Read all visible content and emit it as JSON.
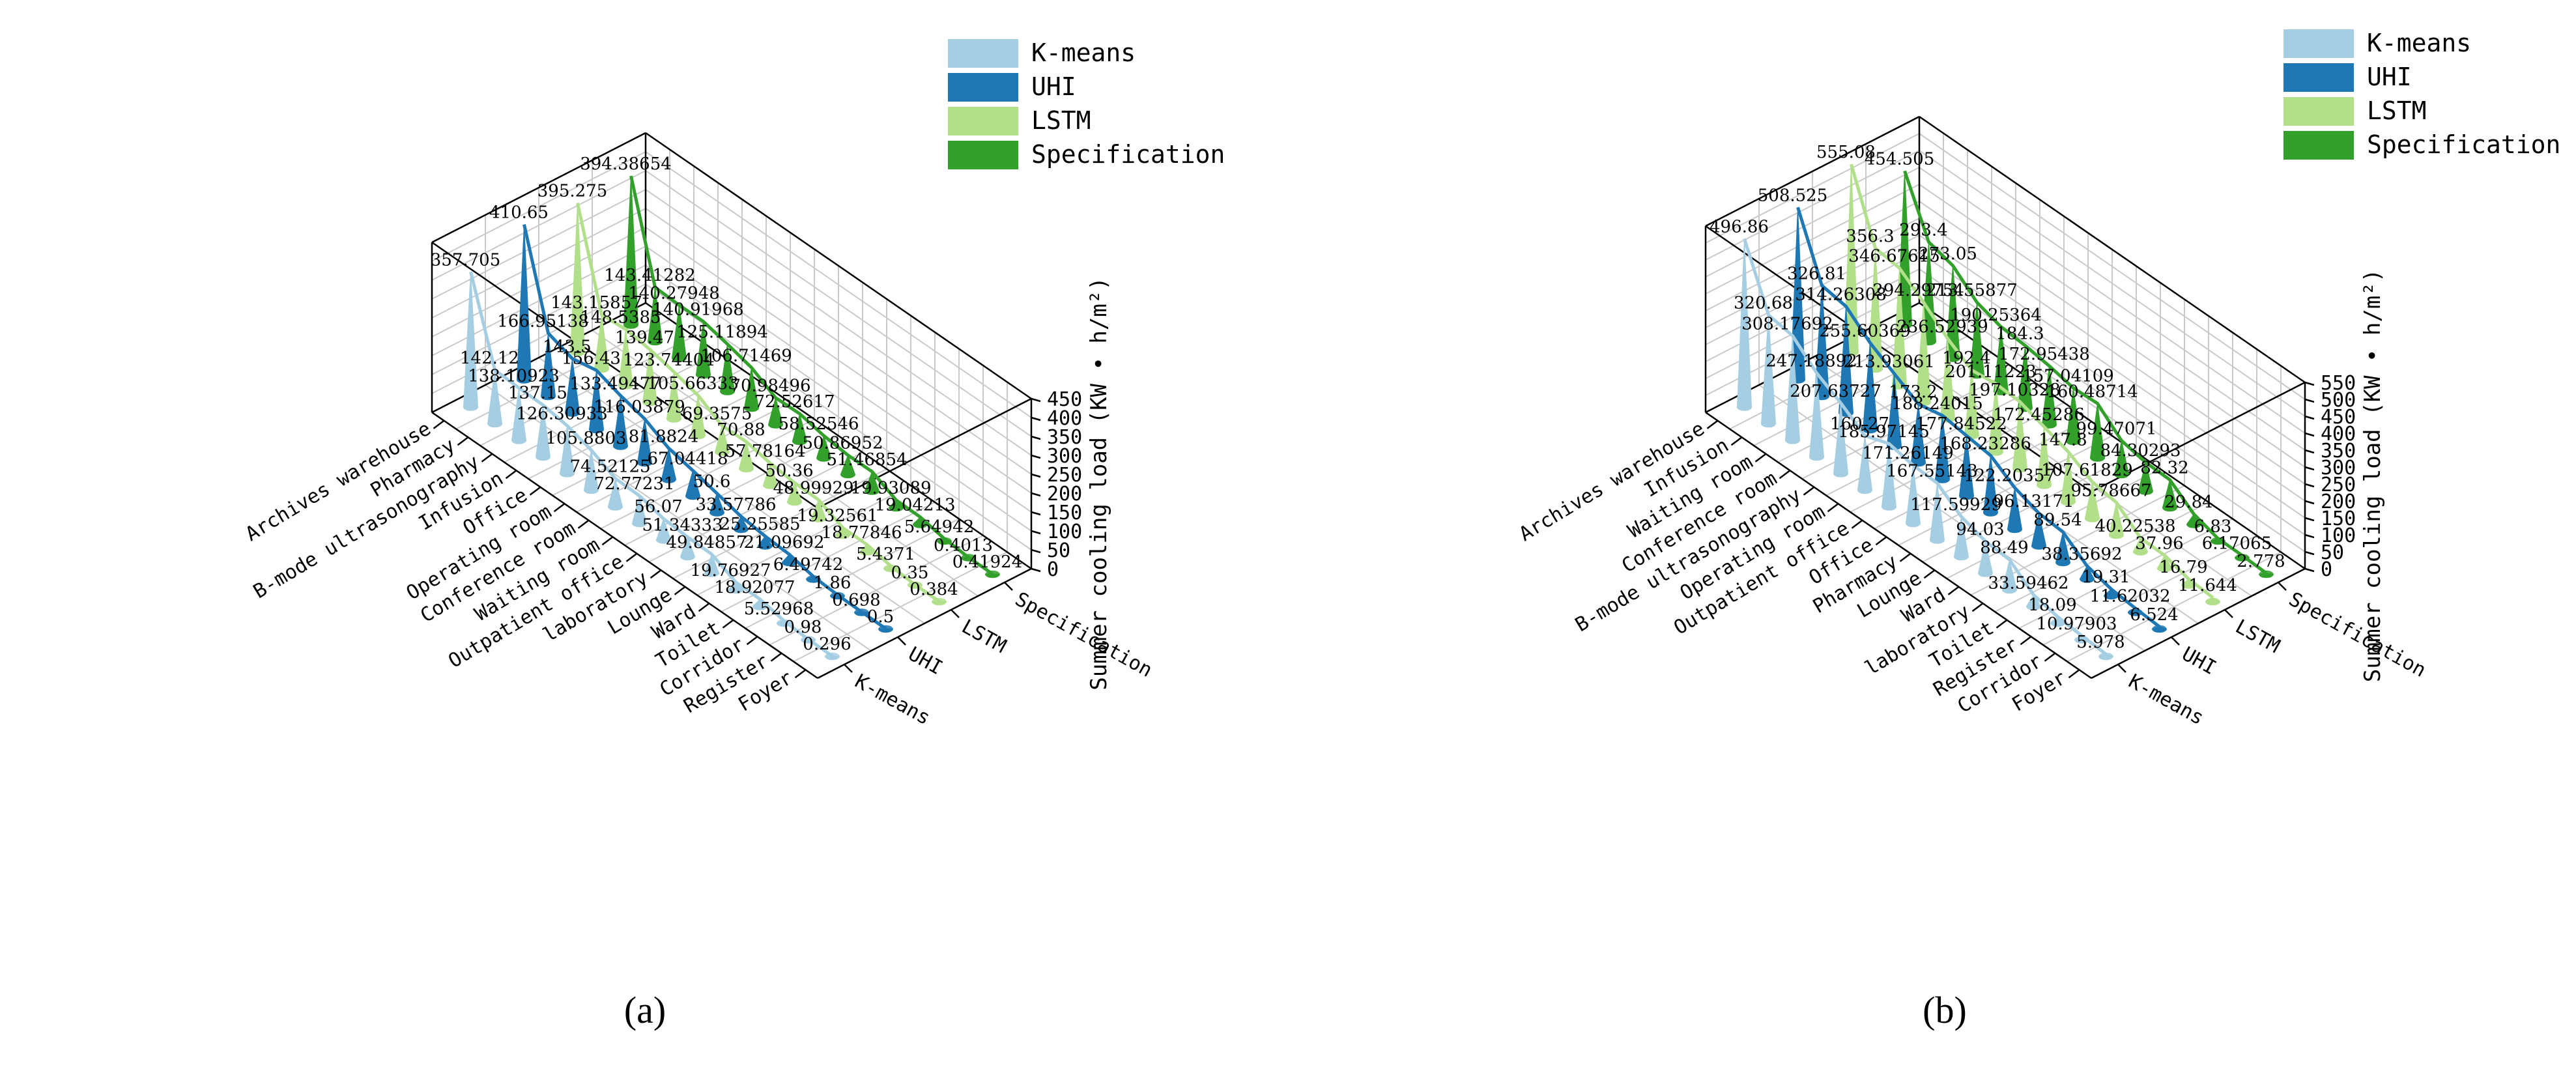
{
  "colors": {
    "K-means": "#a6cee3",
    "UHI": "#1f78b4",
    "LSTM": "#b2df8a",
    "Specification": "#33a02c"
  },
  "chart_data": [
    {
      "type": "bar",
      "panel_label": "(a)",
      "title": "",
      "xlabel": "",
      "zlabel": "Summer cooling load (KW • h/m²)",
      "zlim": [
        0,
        450
      ],
      "zticks": [
        0,
        50,
        100,
        150,
        200,
        250,
        300,
        350,
        400,
        450
      ],
      "grid": true,
      "legend_position": "top-right",
      "categories": [
        "Archives warehouse",
        "Pharmacy",
        "B-mode ultrasonography",
        "Infusion",
        "Office",
        "Operating room",
        "Conference room",
        "Waiting room",
        "Outpatient office",
        "laboratory",
        "Lounge",
        "Ward",
        "Toilet",
        "Corridor",
        "Register",
        "Foyer"
      ],
      "series": [
        {
          "name": "K-means",
          "values": [
            357.705,
            142.12,
            138.10923,
            137.15,
            126.30933,
            105.8803,
            74.52125,
            72.77231,
            56.07,
            51.34333,
            49.84857,
            19.76927,
            18.92077,
            5.52968,
            0.98,
            0.296
          ]
        },
        {
          "name": "UHI",
          "values": [
            410.65,
            166.95138,
            143.5,
            156.43,
            133.49477,
            116.03879,
            81.8824,
            67.04418,
            50.6,
            33.57786,
            25.25585,
            21.09692,
            6.49742,
            1.86,
            0.698,
            0.5
          ]
        },
        {
          "name": "LSTM",
          "values": [
            395.275,
            143.15857,
            148.5385,
            139.47,
            123.74404,
            105.66333,
            69.3575,
            70.88,
            57.78164,
            50.36,
            48.99929,
            19.32561,
            18.77846,
            5.4371,
            0.35,
            0.384
          ]
        },
        {
          "name": "Specification",
          "values": [
            394.38654,
            143.41282,
            140.27948,
            140.91968,
            125.11894,
            106.71469,
            70.98496,
            72.52617,
            58.52546,
            50.86952,
            51.46854,
            19.93089,
            19.04213,
            5.64942,
            0.4013,
            0.41924
          ]
        }
      ]
    },
    {
      "type": "bar",
      "panel_label": "(b)",
      "title": "",
      "xlabel": "",
      "zlabel": "Summer cooling load (KW • h/m²)",
      "zlim": [
        0,
        550
      ],
      "zticks": [
        0,
        50,
        100,
        150,
        200,
        250,
        300,
        350,
        400,
        450,
        500,
        550
      ],
      "grid": true,
      "legend_position": "top-right",
      "categories": [
        "Archives warehouse",
        "Infusion",
        "Waiting room",
        "Conference room",
        "B-mode ultrasonography",
        "Operating room",
        "Outpatient office",
        "Office",
        "Pharmacy",
        "Lounge",
        "Ward",
        "laboratory",
        "Toilet",
        "Register",
        "Corridor",
        "Foyer"
      ],
      "series": [
        {
          "name": "K-means",
          "values": [
            496.86,
            320.68,
            308.17692,
            247.18892,
            207.63727,
            160.27,
            185.97145,
            171.26149,
            167.55143,
            117.59929,
            94.03,
            88.49,
            33.59462,
            18.09,
            10.97903,
            5.978
          ]
        },
        {
          "name": "UHI",
          "values": [
            508.525,
            326.81,
            314.26308,
            255.60369,
            213.93061,
            173.2,
            188.24015,
            177.84522,
            168.23286,
            122.20357,
            96.13171,
            89.54,
            38.35692,
            19.31,
            11.62032,
            6.524
          ]
        },
        {
          "name": "LSTM",
          "values": [
            555.08,
            356.3,
            346.67615,
            294.29754,
            236.52939,
            192.4,
            201.11223,
            197.10328,
            172.45286,
            147.8,
            107.61829,
            95.78667,
            40.22538,
            37.96,
            16.79,
            11.644
          ]
        },
        {
          "name": "Specification",
          "values": [
            454.505,
            293.4,
            273.05,
            213.55877,
            190.25364,
            184.3,
            172.95438,
            157.04109,
            160.48714,
            99.47071,
            84.30293,
            82.32,
            29.84,
            6.83,
            6.17065,
            2.778
          ]
        }
      ]
    }
  ]
}
